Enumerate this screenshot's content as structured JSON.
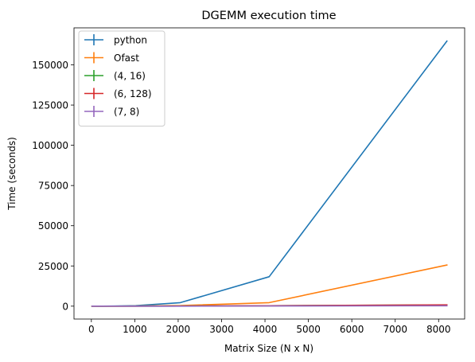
{
  "chart_data": {
    "type": "line",
    "title": "DGEMM execution time",
    "xlabel": "Matrix Size (N x N)",
    "ylabel": "Time (seconds)",
    "xlim": [
      -400,
      8600
    ],
    "ylim": [
      -8000,
      173000
    ],
    "xticks": [
      0,
      1000,
      2000,
      3000,
      4000,
      5000,
      6000,
      7000,
      8000
    ],
    "yticks": [
      0,
      25000,
      50000,
      75000,
      100000,
      125000,
      150000
    ],
    "x": [
      16,
      64,
      128,
      256,
      512,
      1024,
      2048,
      4096,
      8192
    ],
    "series": [
      {
        "name": "python",
        "color": "#1f77b4",
        "values": [
          0,
          1,
          2,
          10,
          40,
          300,
          2200,
          18300,
          164800
        ]
      },
      {
        "name": "Ofast",
        "color": "#ff7f0e",
        "values": [
          0,
          0,
          0,
          2,
          8,
          50,
          350,
          2200,
          25600
        ]
      },
      {
        "name": "(4, 16)",
        "color": "#2ca02c",
        "values": [
          0,
          0,
          0,
          0,
          1,
          5,
          40,
          250,
          750
        ]
      },
      {
        "name": "(6, 128)",
        "color": "#d62728",
        "values": [
          0,
          0,
          0,
          0,
          1,
          6,
          45,
          270,
          800
        ]
      },
      {
        "name": "(7, 8)",
        "color": "#9467bd",
        "values": [
          0,
          0,
          0,
          0,
          1,
          4,
          30,
          120,
          250
        ]
      }
    ],
    "grid": false,
    "legend_position": "top-left"
  }
}
